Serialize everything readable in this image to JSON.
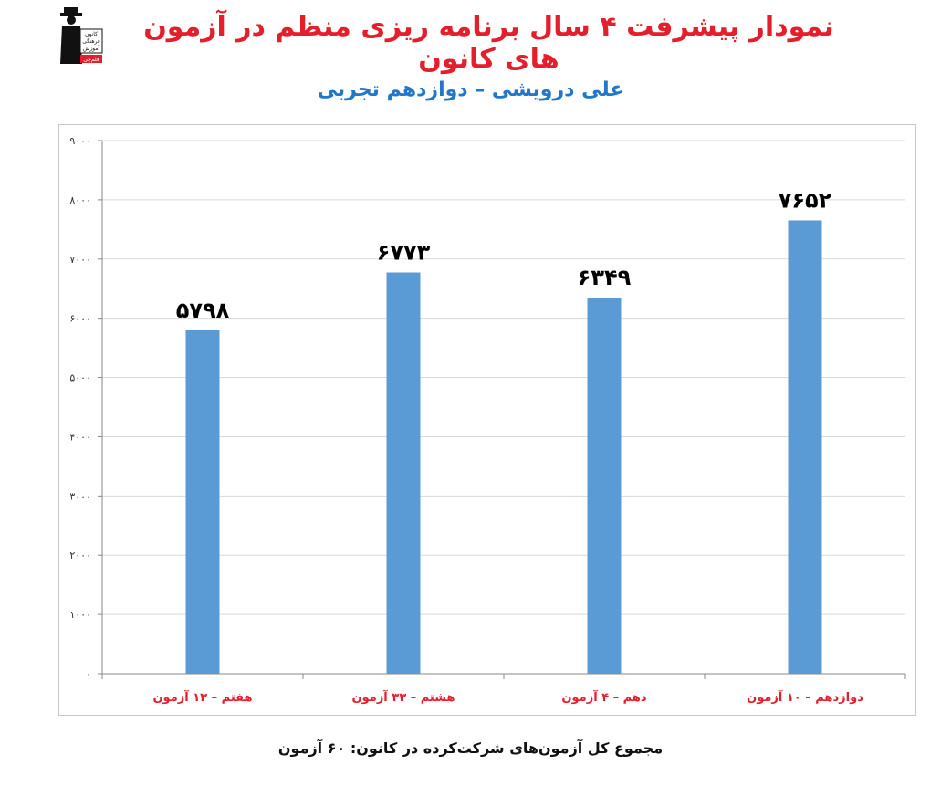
{
  "title": "نمودار پیشرفت ۴ سال برنامه ریزی منظم در آزمون های کانون",
  "subtitle": "علی درویشی – دوازدهم تجربی",
  "footer": "مجموع کل آزمون‌های شرکت‌کرده در کانون: ۶۰ آزمون",
  "logo": {
    "lines": [
      "کانون",
      "فرهنگی",
      "آموزش"
    ],
    "tag": "قلم‌چی"
  },
  "colors": {
    "title": "#e41e2a",
    "subtitle": "#2277c8",
    "bar": "#5b9bd5",
    "category_label": "#e41e2a",
    "grid": "#d9d9d9"
  },
  "chart_data": {
    "type": "bar",
    "categories": [
      "هفتم – ۱۳ آزمون",
      "هشتم – ۳۳ آزمون",
      "دهم – ۴ آزمون",
      "دوازدهم – ۱۰ آزمون"
    ],
    "values": [
      5798,
      6773,
      6349,
      7652
    ],
    "value_labels": [
      "۵۷۹۸",
      "۶۷۷۳",
      "۶۳۴۹",
      "۷۶۵۲"
    ],
    "yticks": [
      0,
      1000,
      2000,
      3000,
      4000,
      5000,
      6000,
      7000,
      8000,
      9000
    ],
    "ytick_labels": [
      "۰",
      "۱۰۰۰",
      "۲۰۰۰",
      "۳۰۰۰",
      "۴۰۰۰",
      "۵۰۰۰",
      "۶۰۰۰",
      "۷۰۰۰",
      "۸۰۰۰",
      "۹۰۰۰"
    ],
    "ylim": [
      0,
      9000
    ],
    "grid": true,
    "legend": "none",
    "xlabel": "",
    "ylabel": ""
  }
}
